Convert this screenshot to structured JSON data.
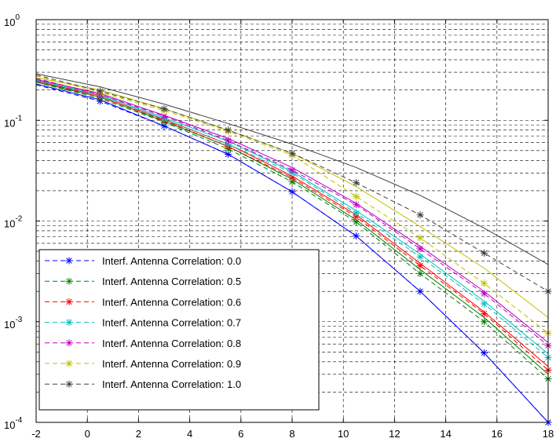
{
  "chart_data": {
    "type": "line",
    "title": "",
    "xlabel": "",
    "ylabel": "",
    "xlim": [
      -2,
      18
    ],
    "ylim": [
      0.0001,
      1
    ],
    "yscale": "log",
    "grid": true,
    "legend_position": "bottom-left",
    "x_ticks": [
      "-2",
      "0",
      "2",
      "4",
      "6",
      "8",
      "10",
      "12",
      "14",
      "16",
      "18"
    ],
    "y_ticks": [
      {
        "base": "10",
        "exp": "-4",
        "value": 0.0001
      },
      {
        "base": "10",
        "exp": "-3",
        "value": 0.001
      },
      {
        "base": "10",
        "exp": "-2",
        "value": 0.01
      },
      {
        "base": "10",
        "exp": "-1",
        "value": 0.1
      },
      {
        "base": "10",
        "exp": "0",
        "value": 1
      }
    ],
    "x": [
      0.5,
      3,
      5.5,
      8,
      10.5,
      13,
      15.5,
      18
    ],
    "series": [
      {
        "name": "Interf. Antenna Correlation: 0.0",
        "color": "#0000ff",
        "marker_values": [
          0.155,
          0.088,
          0.046,
          0.0195,
          0.0071,
          0.002,
          0.00049,
          0.0001
        ],
        "solid_values": [
          0.23,
          0.16,
          0.088,
          0.046,
          0.0195,
          0.0071,
          0.002,
          0.00049,
          0.0001
        ]
      },
      {
        "name": "Interf. Antenna Correlation: 0.5",
        "color": "#008000",
        "marker_values": [
          0.165,
          0.096,
          0.052,
          0.0245,
          0.0098,
          0.003,
          0.001,
          0.00027
        ],
        "solid_values": [
          0.24,
          0.17,
          0.098,
          0.055,
          0.026,
          0.0103,
          0.0033,
          0.0011,
          0.0003
        ]
      },
      {
        "name": "Interf. Antenna Correlation: 0.6",
        "color": "#ff0000",
        "marker_values": [
          0.17,
          0.1,
          0.055,
          0.027,
          0.011,
          0.0036,
          0.0012,
          0.00033
        ],
        "solid_values": [
          0.245,
          0.175,
          0.102,
          0.058,
          0.028,
          0.0115,
          0.0038,
          0.00125,
          0.00036
        ]
      },
      {
        "name": "Interf. Antenna Correlation: 0.7",
        "color": "#00bfbf",
        "marker_values": [
          0.175,
          0.103,
          0.058,
          0.03,
          0.012,
          0.0044,
          0.0015,
          0.00044
        ],
        "solid_values": [
          0.25,
          0.18,
          0.106,
          0.062,
          0.031,
          0.0127,
          0.0047,
          0.0016,
          0.00048
        ]
      },
      {
        "name": "Interf. Antenna Correlation: 0.8",
        "color": "#bf00bf",
        "marker_values": [
          0.18,
          0.11,
          0.063,
          0.032,
          0.0145,
          0.0053,
          0.0019,
          0.00058
        ],
        "solid_values": [
          0.255,
          0.185,
          0.112,
          0.066,
          0.034,
          0.015,
          0.0056,
          0.002,
          0.00062
        ]
      },
      {
        "name": "Interf. Antenna Correlation: 0.9",
        "color": "#bfbf00",
        "marker_values": [
          0.19,
          0.125,
          0.078,
          0.045,
          0.0175,
          0.0068,
          0.0024,
          0.00077
        ],
        "solid_values": [
          0.265,
          0.2,
          0.13,
          0.08,
          0.047,
          0.022,
          0.0088,
          0.0034,
          0.0011
        ]
      },
      {
        "name": "Interf. Antenna Correlation: 1.0",
        "color": "#404040",
        "marker_values": [
          0.195,
          0.13,
          0.08,
          0.047,
          0.024,
          0.0115,
          0.0048,
          0.002
        ],
        "solid_values": [
          0.29,
          0.215,
          0.145,
          0.093,
          0.058,
          0.034,
          0.018,
          0.0085,
          0.0037
        ]
      }
    ],
    "solid_x": [
      -2,
      0.5,
      3,
      5.5,
      8,
      10.5,
      13,
      15.5,
      18
    ]
  }
}
